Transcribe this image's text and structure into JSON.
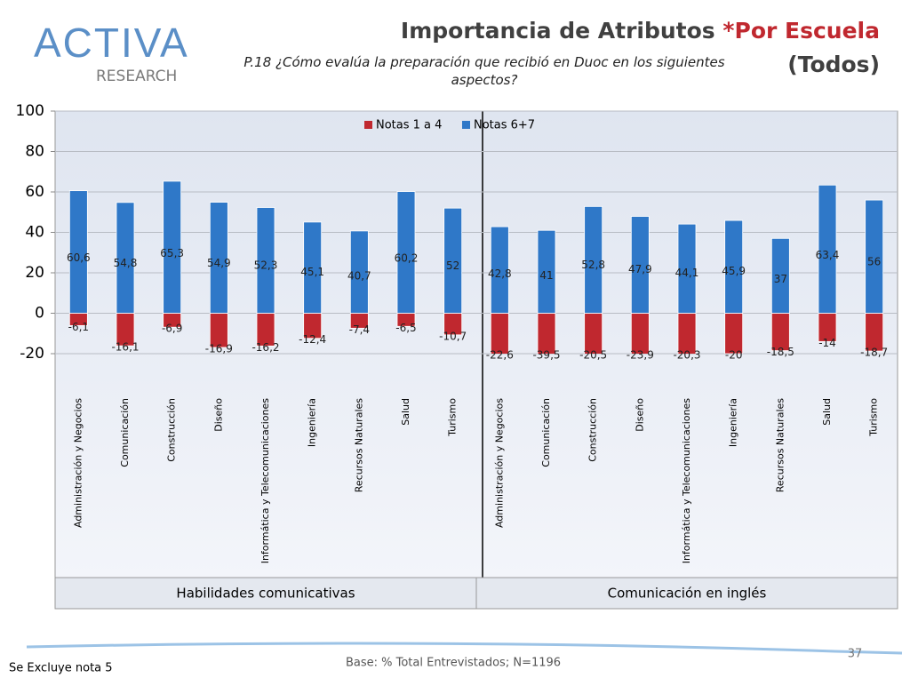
{
  "logo": {
    "name": "ACTIVA",
    "tagline": "RESEARCH"
  },
  "chart_data": {
    "type": "bar",
    "title": "Importancia de Atributos",
    "title_highlight": "*Por Escuela",
    "title_suffix": "(Todos)",
    "subtitle": "P.18 ¿Cómo evalúa la preparación que recibió en Duoc en los siguientes aspectos?",
    "groups": [
      {
        "name": "Habilidades comunicativas",
        "categories": [
          "Administración y Negocios",
          "Comunicación",
          "Construcción",
          "Diseño",
          "Informática y Telecomunicaciones",
          "Ingeniería",
          "Recursos Naturales",
          "Salud",
          "Turismo"
        ]
      },
      {
        "name": "Comunicación en inglés",
        "categories": [
          "Administración y Negocios",
          "Comunicación",
          "Construcción",
          "Diseño",
          "Informática y Telecomunicaciones",
          "Ingeniería",
          "Recursos Naturales",
          "Salud",
          "Turismo"
        ]
      }
    ],
    "series": [
      {
        "name": "Notas 1 a 4",
        "color": "#c0282f",
        "values": [
          -6.1,
          -16.1,
          -6.9,
          -16.9,
          -16.2,
          -12.4,
          -7.4,
          -6.5,
          -10.7,
          -22.6,
          -39.5,
          -20.5,
          -23.9,
          -20.3,
          -20,
          -18.5,
          -14,
          -18.7
        ],
        "value_labels": [
          "-6,1",
          "-16,1",
          "-6,9",
          "-16,9",
          "-16,2",
          "-12,4",
          "-7,4",
          "-6,5",
          "-10,7",
          "-22,6",
          "-39,5",
          "-20,5",
          "-23,9",
          "-20,3",
          "-20",
          "-18,5",
          "-14",
          "-18,7"
        ]
      },
      {
        "name": "Notas 6+7",
        "color": "#2f78c8",
        "values": [
          60.6,
          54.8,
          65.3,
          54.9,
          52.3,
          45.1,
          40.7,
          60.2,
          52,
          42.8,
          41,
          52.8,
          47.9,
          44.1,
          45.9,
          37,
          63.4,
          56
        ],
        "value_labels": [
          "60,6",
          "54,8",
          "65,3",
          "54,9",
          "52,3",
          "45,1",
          "40,7",
          "60,2",
          "52",
          "42,8",
          "41",
          "52,8",
          "47,9",
          "44,1",
          "45,9",
          "37",
          "63,4",
          "56"
        ]
      }
    ],
    "ylim": [
      -20,
      100
    ],
    "yticks": [
      -20,
      0,
      20,
      40,
      60,
      80,
      100
    ],
    "grid": true,
    "legend": "top"
  },
  "footer": {
    "note": "Se Excluye nota 5",
    "base": "Base: % Total Entrevistados; N=1196",
    "page": "37"
  }
}
